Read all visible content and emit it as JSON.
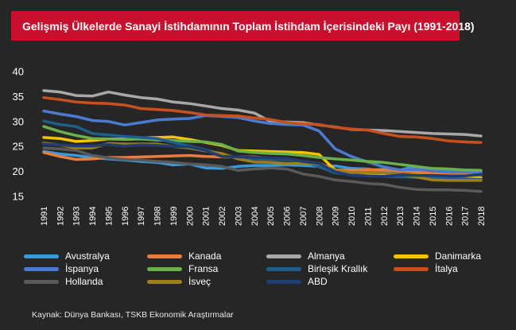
{
  "title": "Gelişmiş Ülkelerde Sanayi İstihdamının Toplam İstihdam İçerisindeki Payı (1991-2018)",
  "source": "Kaynak: Dünya Bankası, TSKB Ekonomik Araştırmalar",
  "chart_data": {
    "type": "line",
    "title": "Gelişmiş Ülkelerde Sanayi İstihdamının Toplam İstihdam İçerisindeki Payı (1991-2018)",
    "xlabel": "",
    "ylabel": "",
    "ylim": [
      15,
      40
    ],
    "yticks": [
      15,
      20,
      25,
      30,
      35,
      40
    ],
    "grid": false,
    "legend_position": "bottom",
    "categories": [
      "1991",
      "1992",
      "1993",
      "1994",
      "1995",
      "1996",
      "1997",
      "1998",
      "1999",
      "2000",
      "2001",
      "2002",
      "2003",
      "2004",
      "2005",
      "2006",
      "2007",
      "2008",
      "2009",
      "2010",
      "2011",
      "2012",
      "2013",
      "2014",
      "2015",
      "2016",
      "2017",
      "2018"
    ],
    "series": [
      {
        "name": "Avustralya",
        "color": "#3a9ad9",
        "values": [
          24.0,
          23.5,
          23.2,
          22.8,
          22.5,
          22.3,
          22.0,
          21.8,
          21.3,
          21.5,
          20.7,
          20.6,
          21.0,
          21.2,
          21.2,
          21.3,
          21.2,
          21.0,
          21.1,
          20.6,
          20.5,
          20.0,
          20.3,
          21.0,
          20.2,
          20.0,
          19.8,
          19.9
        ]
      },
      {
        "name": "Kanada",
        "color": "#e87d3e",
        "values": [
          23.8,
          23.0,
          22.4,
          22.5,
          22.8,
          22.8,
          22.9,
          23.0,
          23.1,
          23.2,
          23.0,
          22.9,
          22.9,
          22.9,
          22.6,
          22.4,
          22.0,
          21.6,
          20.3,
          20.2,
          20.3,
          20.4,
          20.0,
          19.9,
          19.6,
          19.4,
          19.3,
          19.3
        ]
      },
      {
        "name": "Almanya",
        "color": "#a8a8a8",
        "values": [
          36.2,
          35.9,
          35.2,
          35.1,
          35.9,
          35.3,
          34.8,
          34.5,
          33.9,
          33.6,
          33.1,
          32.6,
          32.3,
          31.7,
          30.0,
          29.9,
          29.8,
          29.3,
          28.9,
          28.4,
          28.3,
          28.2,
          28.0,
          27.8,
          27.6,
          27.5,
          27.4,
          27.1
        ]
      },
      {
        "name": "Danimarka",
        "color": "#f5c400",
        "values": [
          26.8,
          26.6,
          26.0,
          26.2,
          26.5,
          26.5,
          26.7,
          26.8,
          26.9,
          26.4,
          25.8,
          25.2,
          24.2,
          24.1,
          24.0,
          23.9,
          23.8,
          23.4,
          20.2,
          19.7,
          19.6,
          19.5,
          19.3,
          19.3,
          19.1,
          19.0,
          18.8,
          18.7
        ]
      },
      {
        "name": "İspanya",
        "color": "#4a7bd1",
        "values": [
          32.1,
          31.5,
          31.0,
          30.2,
          30.0,
          29.3,
          29.8,
          30.3,
          30.5,
          30.6,
          31.2,
          31.0,
          30.8,
          30.1,
          29.6,
          29.4,
          29.3,
          28.1,
          24.5,
          23.0,
          21.9,
          20.9,
          20.3,
          20.4,
          20.2,
          20.0,
          19.9,
          19.8
        ]
      },
      {
        "name": "Fransa",
        "color": "#6ab04c",
        "values": [
          29.0,
          28.0,
          27.2,
          26.6,
          26.5,
          26.4,
          26.5,
          26.3,
          26.2,
          26.0,
          25.9,
          25.4,
          24.1,
          23.8,
          23.6,
          23.5,
          23.2,
          22.8,
          22.5,
          22.3,
          22.0,
          21.8,
          21.4,
          21.0,
          20.6,
          20.5,
          20.3,
          20.2
        ]
      },
      {
        "name": "Birleşik Krallık",
        "color": "#1f5f8b",
        "values": [
          30.1,
          29.4,
          29.0,
          27.6,
          27.3,
          27.0,
          26.8,
          26.6,
          25.8,
          25.1,
          24.3,
          23.4,
          22.8,
          22.5,
          22.4,
          22.4,
          22.0,
          20.9,
          19.7,
          19.4,
          19.1,
          19.0,
          18.9,
          18.8,
          18.7,
          18.6,
          18.5,
          18.4
        ]
      },
      {
        "name": "İtalya",
        "color": "#c8501e",
        "values": [
          34.8,
          34.4,
          33.9,
          33.7,
          33.6,
          33.3,
          32.6,
          32.4,
          32.2,
          31.8,
          31.3,
          31.2,
          31.1,
          30.7,
          30.4,
          29.8,
          29.5,
          29.4,
          28.8,
          28.5,
          28.3,
          27.6,
          27.0,
          26.9,
          26.6,
          26.1,
          25.9,
          25.8
        ]
      },
      {
        "name": "Hollanda",
        "color": "#5a5a5a",
        "values": [
          24.7,
          24.5,
          24.2,
          23.2,
          22.7,
          22.4,
          22.3,
          22.0,
          21.8,
          21.5,
          21.3,
          21.0,
          20.2,
          20.5,
          20.7,
          20.5,
          19.5,
          19.0,
          18.3,
          18.0,
          17.6,
          17.4,
          16.8,
          16.4,
          16.3,
          16.3,
          16.2,
          16.0
        ]
      },
      {
        "name": "İsveç",
        "color": "#9c7f1a",
        "values": [
          25.7,
          25.3,
          24.7,
          24.7,
          25.6,
          25.5,
          25.5,
          25.5,
          25.0,
          24.7,
          24.1,
          23.6,
          22.5,
          21.9,
          21.8,
          21.6,
          21.6,
          21.5,
          20.2,
          19.8,
          19.8,
          19.7,
          19.4,
          18.9,
          18.3,
          18.2,
          18.2,
          18.2
        ]
      },
      {
        "name": "ABD",
        "color": "#1f3d73",
        "values": [
          25.5,
          25.3,
          25.1,
          25.1,
          25.4,
          25.1,
          25.3,
          25.2,
          25.0,
          24.9,
          24.2,
          23.0,
          22.9,
          22.8,
          22.7,
          22.6,
          22.0,
          21.6,
          19.9,
          19.2,
          19.1,
          19.0,
          19.3,
          19.2,
          19.2,
          19.1,
          19.1,
          19.4
        ]
      }
    ]
  },
  "legend_order": [
    "Avustralya",
    "Kanada",
    "Almanya",
    "Danimarka",
    "İspanya",
    "Fransa",
    "Birleşik Krallık",
    "İtalya",
    "Hollanda",
    "İsveç",
    "ABD"
  ]
}
